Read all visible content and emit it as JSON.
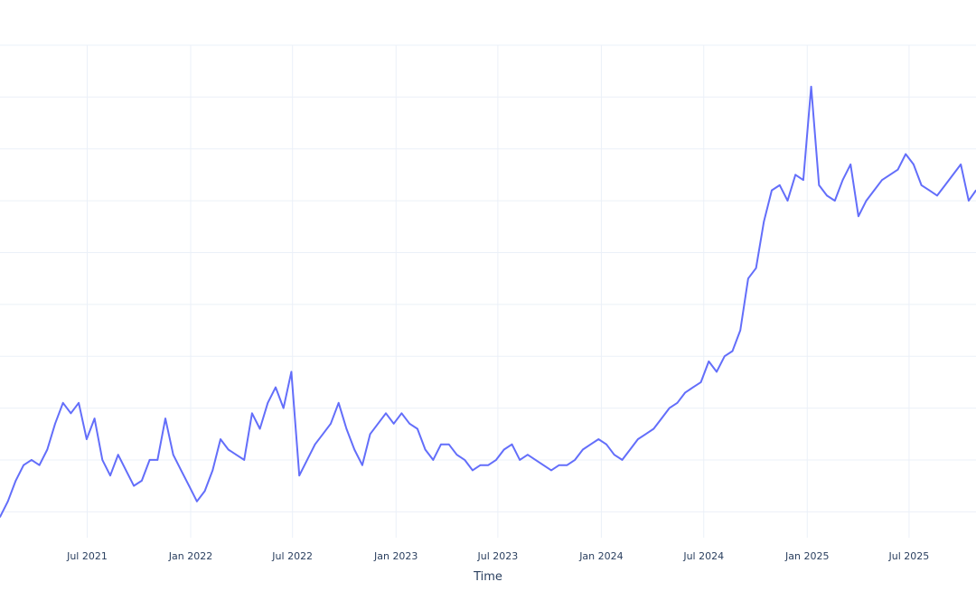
{
  "chart_data": {
    "type": "line",
    "title": "",
    "xlabel": "Time",
    "ylabel": "",
    "x_domain": [
      "2021-01-27",
      "2025-10-28"
    ],
    "ylim": [
      5,
      100
    ],
    "grid": true,
    "legend": "none",
    "colors": {
      "line": "#636efa",
      "grid": "#ebf0f8",
      "text": "#2a3f5f",
      "background": "#ffffff"
    },
    "x_ticks": [
      {
        "date": "2021-07-01",
        "label": "Jul 2021"
      },
      {
        "date": "2022-01-01",
        "label": "Jan 2022"
      },
      {
        "date": "2022-07-01",
        "label": "Jul 2022"
      },
      {
        "date": "2023-01-01",
        "label": "Jan 2023"
      },
      {
        "date": "2023-07-01",
        "label": "Jul 2023"
      },
      {
        "date": "2024-01-01",
        "label": "Jan 2024"
      },
      {
        "date": "2024-07-01",
        "label": "Jul 2024"
      },
      {
        "date": "2025-01-01",
        "label": "Jan 2025"
      },
      {
        "date": "2025-07-01",
        "label": "Jul 2025"
      }
    ],
    "y_gridlines": [
      10,
      20,
      30,
      40,
      50,
      60,
      70,
      80,
      90,
      100
    ],
    "series": [
      {
        "points": [
          [
            "2021-01-27",
            9
          ],
          [
            "2021-02-10",
            12
          ],
          [
            "2021-02-24",
            16
          ],
          [
            "2021-03-10",
            19
          ],
          [
            "2021-03-24",
            20
          ],
          [
            "2021-04-07",
            19
          ],
          [
            "2021-04-21",
            22
          ],
          [
            "2021-05-05",
            27
          ],
          [
            "2021-05-19",
            31
          ],
          [
            "2021-06-02",
            29
          ],
          [
            "2021-06-16",
            31
          ],
          [
            "2021-06-30",
            24
          ],
          [
            "2021-07-14",
            28
          ],
          [
            "2021-07-28",
            20
          ],
          [
            "2021-08-11",
            17
          ],
          [
            "2021-08-25",
            21
          ],
          [
            "2021-09-08",
            18
          ],
          [
            "2021-09-22",
            15
          ],
          [
            "2021-10-06",
            16
          ],
          [
            "2021-10-20",
            20
          ],
          [
            "2021-11-03",
            20
          ],
          [
            "2021-11-17",
            28
          ],
          [
            "2021-12-01",
            21
          ],
          [
            "2021-12-15",
            18
          ],
          [
            "2021-12-29",
            15
          ],
          [
            "2022-01-12",
            12
          ],
          [
            "2022-01-26",
            14
          ],
          [
            "2022-02-09",
            18
          ],
          [
            "2022-02-23",
            24
          ],
          [
            "2022-03-09",
            22
          ],
          [
            "2022-03-23",
            21
          ],
          [
            "2022-04-06",
            20
          ],
          [
            "2022-04-20",
            29
          ],
          [
            "2022-05-04",
            26
          ],
          [
            "2022-05-18",
            31
          ],
          [
            "2022-06-01",
            34
          ],
          [
            "2022-06-15",
            30
          ],
          [
            "2022-06-29",
            37
          ],
          [
            "2022-07-13",
            17
          ],
          [
            "2022-07-27",
            20
          ],
          [
            "2022-08-10",
            23
          ],
          [
            "2022-08-24",
            25
          ],
          [
            "2022-09-07",
            27
          ],
          [
            "2022-09-21",
            31
          ],
          [
            "2022-10-05",
            26
          ],
          [
            "2022-10-19",
            22
          ],
          [
            "2022-11-02",
            19
          ],
          [
            "2022-11-16",
            25
          ],
          [
            "2022-11-30",
            27
          ],
          [
            "2022-12-14",
            29
          ],
          [
            "2022-12-28",
            27
          ],
          [
            "2023-01-11",
            29
          ],
          [
            "2023-01-25",
            27
          ],
          [
            "2023-02-08",
            26
          ],
          [
            "2023-02-22",
            22
          ],
          [
            "2023-03-08",
            20
          ],
          [
            "2023-03-22",
            23
          ],
          [
            "2023-04-05",
            23
          ],
          [
            "2023-04-19",
            21
          ],
          [
            "2023-05-03",
            20
          ],
          [
            "2023-05-17",
            18
          ],
          [
            "2023-05-31",
            19
          ],
          [
            "2023-06-14",
            19
          ],
          [
            "2023-06-28",
            20
          ],
          [
            "2023-07-12",
            22
          ],
          [
            "2023-07-26",
            23
          ],
          [
            "2023-08-09",
            20
          ],
          [
            "2023-08-23",
            21
          ],
          [
            "2023-09-06",
            20
          ],
          [
            "2023-09-20",
            19
          ],
          [
            "2023-10-04",
            18
          ],
          [
            "2023-10-18",
            19
          ],
          [
            "2023-11-01",
            19
          ],
          [
            "2023-11-15",
            20
          ],
          [
            "2023-11-29",
            22
          ],
          [
            "2023-12-13",
            23
          ],
          [
            "2023-12-27",
            24
          ],
          [
            "2024-01-10",
            23
          ],
          [
            "2024-01-24",
            21
          ],
          [
            "2024-02-07",
            20
          ],
          [
            "2024-02-21",
            22
          ],
          [
            "2024-03-06",
            24
          ],
          [
            "2024-03-20",
            25
          ],
          [
            "2024-04-03",
            26
          ],
          [
            "2024-04-17",
            28
          ],
          [
            "2024-05-01",
            30
          ],
          [
            "2024-05-15",
            31
          ],
          [
            "2024-05-29",
            33
          ],
          [
            "2024-06-12",
            34
          ],
          [
            "2024-06-26",
            35
          ],
          [
            "2024-07-10",
            39
          ],
          [
            "2024-07-24",
            37
          ],
          [
            "2024-08-07",
            40
          ],
          [
            "2024-08-21",
            41
          ],
          [
            "2024-09-04",
            45
          ],
          [
            "2024-09-18",
            55
          ],
          [
            "2024-10-02",
            57
          ],
          [
            "2024-10-16",
            66
          ],
          [
            "2024-10-30",
            72
          ],
          [
            "2024-11-13",
            73
          ],
          [
            "2024-11-27",
            70
          ],
          [
            "2024-12-11",
            75
          ],
          [
            "2024-12-25",
            74
          ],
          [
            "2025-01-08",
            92
          ],
          [
            "2025-01-22",
            73
          ],
          [
            "2025-02-05",
            71
          ],
          [
            "2025-02-19",
            70
          ],
          [
            "2025-03-05",
            74
          ],
          [
            "2025-03-19",
            77
          ],
          [
            "2025-04-02",
            67
          ],
          [
            "2025-04-16",
            70
          ],
          [
            "2025-04-30",
            72
          ],
          [
            "2025-05-14",
            74
          ],
          [
            "2025-05-28",
            75
          ],
          [
            "2025-06-11",
            76
          ],
          [
            "2025-06-25",
            79
          ],
          [
            "2025-07-09",
            77
          ],
          [
            "2025-07-23",
            73
          ],
          [
            "2025-08-06",
            72
          ],
          [
            "2025-08-20",
            71
          ],
          [
            "2025-09-03",
            73
          ],
          [
            "2025-09-17",
            75
          ],
          [
            "2025-10-01",
            77
          ],
          [
            "2025-10-15",
            70
          ],
          [
            "2025-10-28",
            72
          ]
        ]
      }
    ]
  }
}
